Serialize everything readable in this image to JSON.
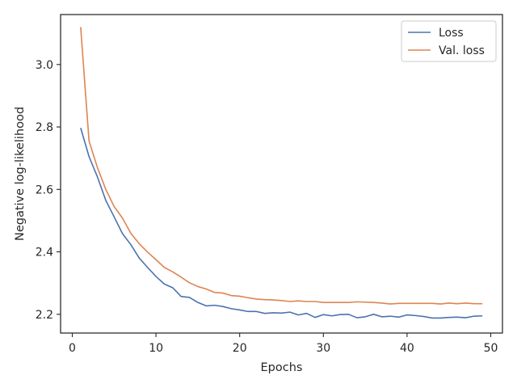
{
  "chart_data": {
    "type": "line",
    "title": "",
    "xlabel": "Epochs",
    "ylabel": "Negative log-likelihood",
    "xlim": [
      -1.4,
      51.4
    ],
    "ylim": [
      2.14,
      3.16
    ],
    "xticks": [
      0,
      10,
      20,
      30,
      40,
      50
    ],
    "xtick_labels": [
      "0",
      "10",
      "20",
      "30",
      "40",
      "50"
    ],
    "yticks": [
      2.2,
      2.4,
      2.6,
      2.8,
      3.0
    ],
    "ytick_labels": [
      "2.2",
      "2.4",
      "2.6",
      "2.8",
      "3.0"
    ],
    "grid": false,
    "legend_position": "top-right",
    "x": [
      1,
      2,
      3,
      4,
      5,
      6,
      7,
      8,
      9,
      10,
      11,
      12,
      13,
      14,
      15,
      16,
      17,
      18,
      19,
      20,
      21,
      22,
      23,
      24,
      25,
      26,
      27,
      28,
      29,
      30,
      31,
      32,
      33,
      34,
      35,
      36,
      37,
      38,
      39,
      40,
      41,
      42,
      43,
      44,
      45,
      46,
      47,
      48,
      49
    ],
    "series": [
      {
        "name": "Loss",
        "color": "#4c72b0",
        "values": [
          2.797,
          2.705,
          2.64,
          2.565,
          2.512,
          2.458,
          2.423,
          2.38,
          2.35,
          2.321,
          2.297,
          2.285,
          2.257,
          2.254,
          2.238,
          2.227,
          2.229,
          2.225,
          2.218,
          2.214,
          2.209,
          2.209,
          2.203,
          2.205,
          2.204,
          2.207,
          2.198,
          2.203,
          2.19,
          2.199,
          2.195,
          2.199,
          2.2,
          2.189,
          2.192,
          2.2,
          2.192,
          2.194,
          2.191,
          2.198,
          2.196,
          2.193,
          2.188,
          2.188,
          2.19,
          2.191,
          2.189,
          2.194,
          2.195
        ]
      },
      {
        "name": "Val. loss",
        "color": "#dd8452",
        "values": [
          3.12,
          2.755,
          2.67,
          2.6,
          2.545,
          2.508,
          2.459,
          2.426,
          2.399,
          2.375,
          2.35,
          2.336,
          2.319,
          2.301,
          2.289,
          2.281,
          2.27,
          2.268,
          2.26,
          2.258,
          2.253,
          2.249,
          2.247,
          2.246,
          2.244,
          2.241,
          2.243,
          2.241,
          2.241,
          2.238,
          2.238,
          2.238,
          2.238,
          2.24,
          2.239,
          2.238,
          2.236,
          2.233,
          2.235,
          2.235,
          2.235,
          2.235,
          2.235,
          2.233,
          2.236,
          2.234,
          2.236,
          2.234,
          2.234
        ]
      }
    ]
  }
}
